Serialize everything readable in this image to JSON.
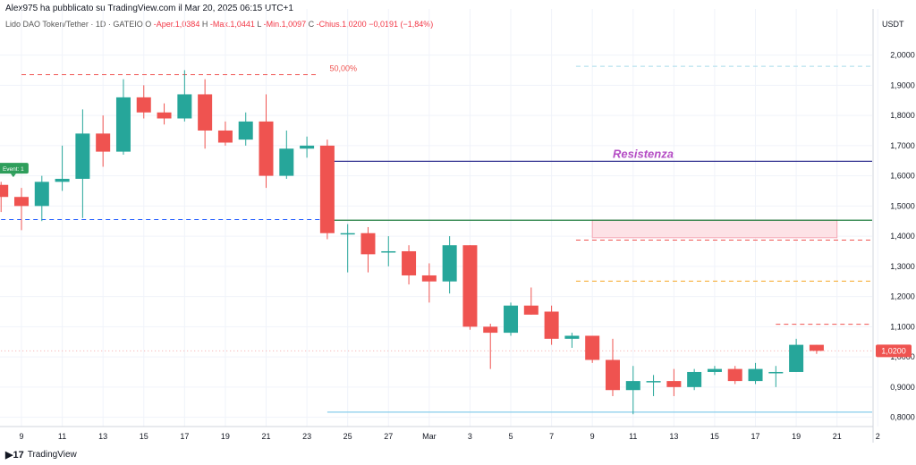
{
  "header": {
    "published": "Alex975 ha pubblicato su TradingView.com il Mar 20, 2025 06:15 UTC+1"
  },
  "legend": {
    "symbol": "Lido DAO Token/Tether · 1D · GATEIO",
    "o_label": "O",
    "o": "-Aper.1,0384",
    "h_label": "H",
    "h": "-Max.1,0441",
    "l_label": "L",
    "l": "-Min.1,0097",
    "c_label": "C",
    "c": "-Chius.1,0200",
    "change": "−0,0191 (−1,84%)"
  },
  "currency": "USDT",
  "brand": "TradingView",
  "colors": {
    "up": "#26a69a",
    "down": "#ef5350",
    "resistance": "#303090",
    "resistance_text": "#b44cc4"
  },
  "chart_data": {
    "type": "candlestick",
    "y_ticks": [
      "0,8000",
      "0,9000",
      "1,0000",
      "1,1000",
      "1,2000",
      "1,3000",
      "1,4000",
      "1,5000",
      "1,6000",
      "1,7000",
      "1,8000",
      "1,9000",
      "2,0000"
    ],
    "ylim": [
      0.77,
      2.08
    ],
    "x_ticks": [
      {
        "label": "9",
        "day": 9
      },
      {
        "label": "11",
        "day": 11
      },
      {
        "label": "13",
        "day": 13
      },
      {
        "label": "15",
        "day": 15
      },
      {
        "label": "17",
        "day": 17
      },
      {
        "label": "19",
        "day": 19
      },
      {
        "label": "21",
        "day": 21
      },
      {
        "label": "23",
        "day": 23
      },
      {
        "label": "25",
        "day": 25
      },
      {
        "label": "27",
        "day": 27
      },
      {
        "label": "Mar",
        "day": 29
      },
      {
        "label": "3",
        "day": 31
      },
      {
        "label": "5",
        "day": 33
      },
      {
        "label": "7",
        "day": 35
      },
      {
        "label": "9",
        "day": 37
      },
      {
        "label": "11",
        "day": 39
      },
      {
        "label": "13",
        "day": 41
      },
      {
        "label": "15",
        "day": 43
      },
      {
        "label": "17",
        "day": 45
      },
      {
        "label": "19",
        "day": 47
      },
      {
        "label": "21",
        "day": 49
      },
      {
        "label": "2",
        "day": 51
      }
    ],
    "xlim": [
      8.2,
      51.2
    ],
    "candles": [
      {
        "d": 8,
        "o": 1.57,
        "h": 1.58,
        "l": 1.48,
        "c": 1.53
      },
      {
        "d": 9,
        "o": 1.53,
        "h": 1.56,
        "l": 1.42,
        "c": 1.5
      },
      {
        "d": 10,
        "o": 1.5,
        "h": 1.6,
        "l": 1.45,
        "c": 1.58
      },
      {
        "d": 11,
        "o": 1.58,
        "h": 1.7,
        "l": 1.55,
        "c": 1.59
      },
      {
        "d": 12,
        "o": 1.59,
        "h": 1.82,
        "l": 1.46,
        "c": 1.74
      },
      {
        "d": 13,
        "o": 1.74,
        "h": 1.8,
        "l": 1.63,
        "c": 1.68
      },
      {
        "d": 14,
        "o": 1.68,
        "h": 1.92,
        "l": 1.67,
        "c": 1.86
      },
      {
        "d": 15,
        "o": 1.86,
        "h": 1.9,
        "l": 1.79,
        "c": 1.81
      },
      {
        "d": 16,
        "o": 1.81,
        "h": 1.84,
        "l": 1.77,
        "c": 1.79
      },
      {
        "d": 17,
        "o": 1.79,
        "h": 1.95,
        "l": 1.78,
        "c": 1.87
      },
      {
        "d": 18,
        "o": 1.87,
        "h": 1.92,
        "l": 1.69,
        "c": 1.75
      },
      {
        "d": 19,
        "o": 1.75,
        "h": 1.78,
        "l": 1.7,
        "c": 1.71
      },
      {
        "d": 20,
        "o": 1.72,
        "h": 1.81,
        "l": 1.7,
        "c": 1.78
      },
      {
        "d": 21,
        "o": 1.78,
        "h": 1.87,
        "l": 1.56,
        "c": 1.6
      },
      {
        "d": 22,
        "o": 1.6,
        "h": 1.75,
        "l": 1.59,
        "c": 1.69
      },
      {
        "d": 23,
        "o": 1.69,
        "h": 1.73,
        "l": 1.66,
        "c": 1.7
      },
      {
        "d": 24,
        "o": 1.7,
        "h": 1.72,
        "l": 1.39,
        "c": 1.41
      },
      {
        "d": 25,
        "o": 1.41,
        "h": 1.44,
        "l": 1.28,
        "c": 1.41
      },
      {
        "d": 26,
        "o": 1.41,
        "h": 1.43,
        "l": 1.28,
        "c": 1.34
      },
      {
        "d": 27,
        "o": 1.35,
        "h": 1.4,
        "l": 1.3,
        "c": 1.35
      },
      {
        "d": 28,
        "o": 1.35,
        "h": 1.37,
        "l": 1.24,
        "c": 1.27
      },
      {
        "d": 29,
        "o": 1.27,
        "h": 1.31,
        "l": 1.18,
        "c": 1.25
      },
      {
        "d": 30,
        "o": 1.25,
        "h": 1.4,
        "l": 1.21,
        "c": 1.37
      },
      {
        "d": 31,
        "o": 1.37,
        "h": 1.37,
        "l": 1.09,
        "c": 1.1
      },
      {
        "d": 32,
        "o": 1.1,
        "h": 1.11,
        "l": 0.96,
        "c": 1.08
      },
      {
        "d": 33,
        "o": 1.08,
        "h": 1.18,
        "l": 1.07,
        "c": 1.17
      },
      {
        "d": 34,
        "o": 1.17,
        "h": 1.23,
        "l": 1.14,
        "c": 1.14
      },
      {
        "d": 35,
        "o": 1.15,
        "h": 1.17,
        "l": 1.04,
        "c": 1.06
      },
      {
        "d": 36,
        "o": 1.06,
        "h": 1.08,
        "l": 1.03,
        "c": 1.07
      },
      {
        "d": 37,
        "o": 1.07,
        "h": 1.07,
        "l": 0.98,
        "c": 0.99
      },
      {
        "d": 38,
        "o": 0.99,
        "h": 1.06,
        "l": 0.87,
        "c": 0.89
      },
      {
        "d": 39,
        "o": 0.89,
        "h": 0.97,
        "l": 0.81,
        "c": 0.92
      },
      {
        "d": 40,
        "o": 0.92,
        "h": 0.94,
        "l": 0.87,
        "c": 0.92
      },
      {
        "d": 41,
        "o": 0.92,
        "h": 0.96,
        "l": 0.87,
        "c": 0.9
      },
      {
        "d": 42,
        "o": 0.9,
        "h": 0.96,
        "l": 0.89,
        "c": 0.95
      },
      {
        "d": 43,
        "o": 0.95,
        "h": 0.97,
        "l": 0.94,
        "c": 0.96
      },
      {
        "d": 44,
        "o": 0.96,
        "h": 0.97,
        "l": 0.91,
        "c": 0.92
      },
      {
        "d": 45,
        "o": 0.92,
        "h": 0.98,
        "l": 0.91,
        "c": 0.96
      },
      {
        "d": 46,
        "o": 0.95,
        "h": 0.97,
        "l": 0.9,
        "c": 0.95
      },
      {
        "d": 47,
        "o": 0.95,
        "h": 1.06,
        "l": 0.95,
        "c": 1.04
      },
      {
        "d": 48,
        "o": 1.04,
        "h": 1.04,
        "l": 1.01,
        "c": 1.02
      }
    ],
    "hlines": [
      {
        "y": 1.935,
        "from": 9,
        "to": 23.5,
        "style": "dash",
        "color": "#ef5350",
        "label": "50,00%"
      },
      {
        "y": 1.963,
        "from": 36.2,
        "to": 51,
        "style": "dash",
        "color": "#a8dcea"
      },
      {
        "y": 1.648,
        "from": 24,
        "to": 51,
        "style": "solid",
        "color": "#303090",
        "label": "Resistenza"
      },
      {
        "y": 1.455,
        "from": 8,
        "to": 24,
        "style": "dash",
        "color": "#2962ff"
      },
      {
        "y": 1.453,
        "from": 24,
        "to": 51,
        "style": "solid",
        "color": "#1a7a3a"
      },
      {
        "y": 1.387,
        "from": 36.2,
        "to": 51,
        "style": "dash",
        "color": "#ef5350"
      },
      {
        "y": 1.251,
        "from": 36.2,
        "to": 51,
        "style": "dash",
        "color": "#f5a623"
      },
      {
        "y": 1.108,
        "from": 46,
        "to": 51,
        "style": "dash",
        "color": "#ef5350"
      },
      {
        "y": 1.02,
        "from": 8,
        "to": 51,
        "style": "dot",
        "color": "#f4a6a6"
      },
      {
        "y": 0.817,
        "from": 24,
        "to": 51,
        "style": "solid",
        "color": "#87ceeb"
      }
    ],
    "box": {
      "y_top": 1.453,
      "y_bottom": 1.395,
      "from": 37,
      "to": 49
    },
    "event_marker": {
      "label": "Event: 1",
      "day": 8.6,
      "y": 1.625
    },
    "last_price": "1,0200",
    "last_value": 1.02
  }
}
